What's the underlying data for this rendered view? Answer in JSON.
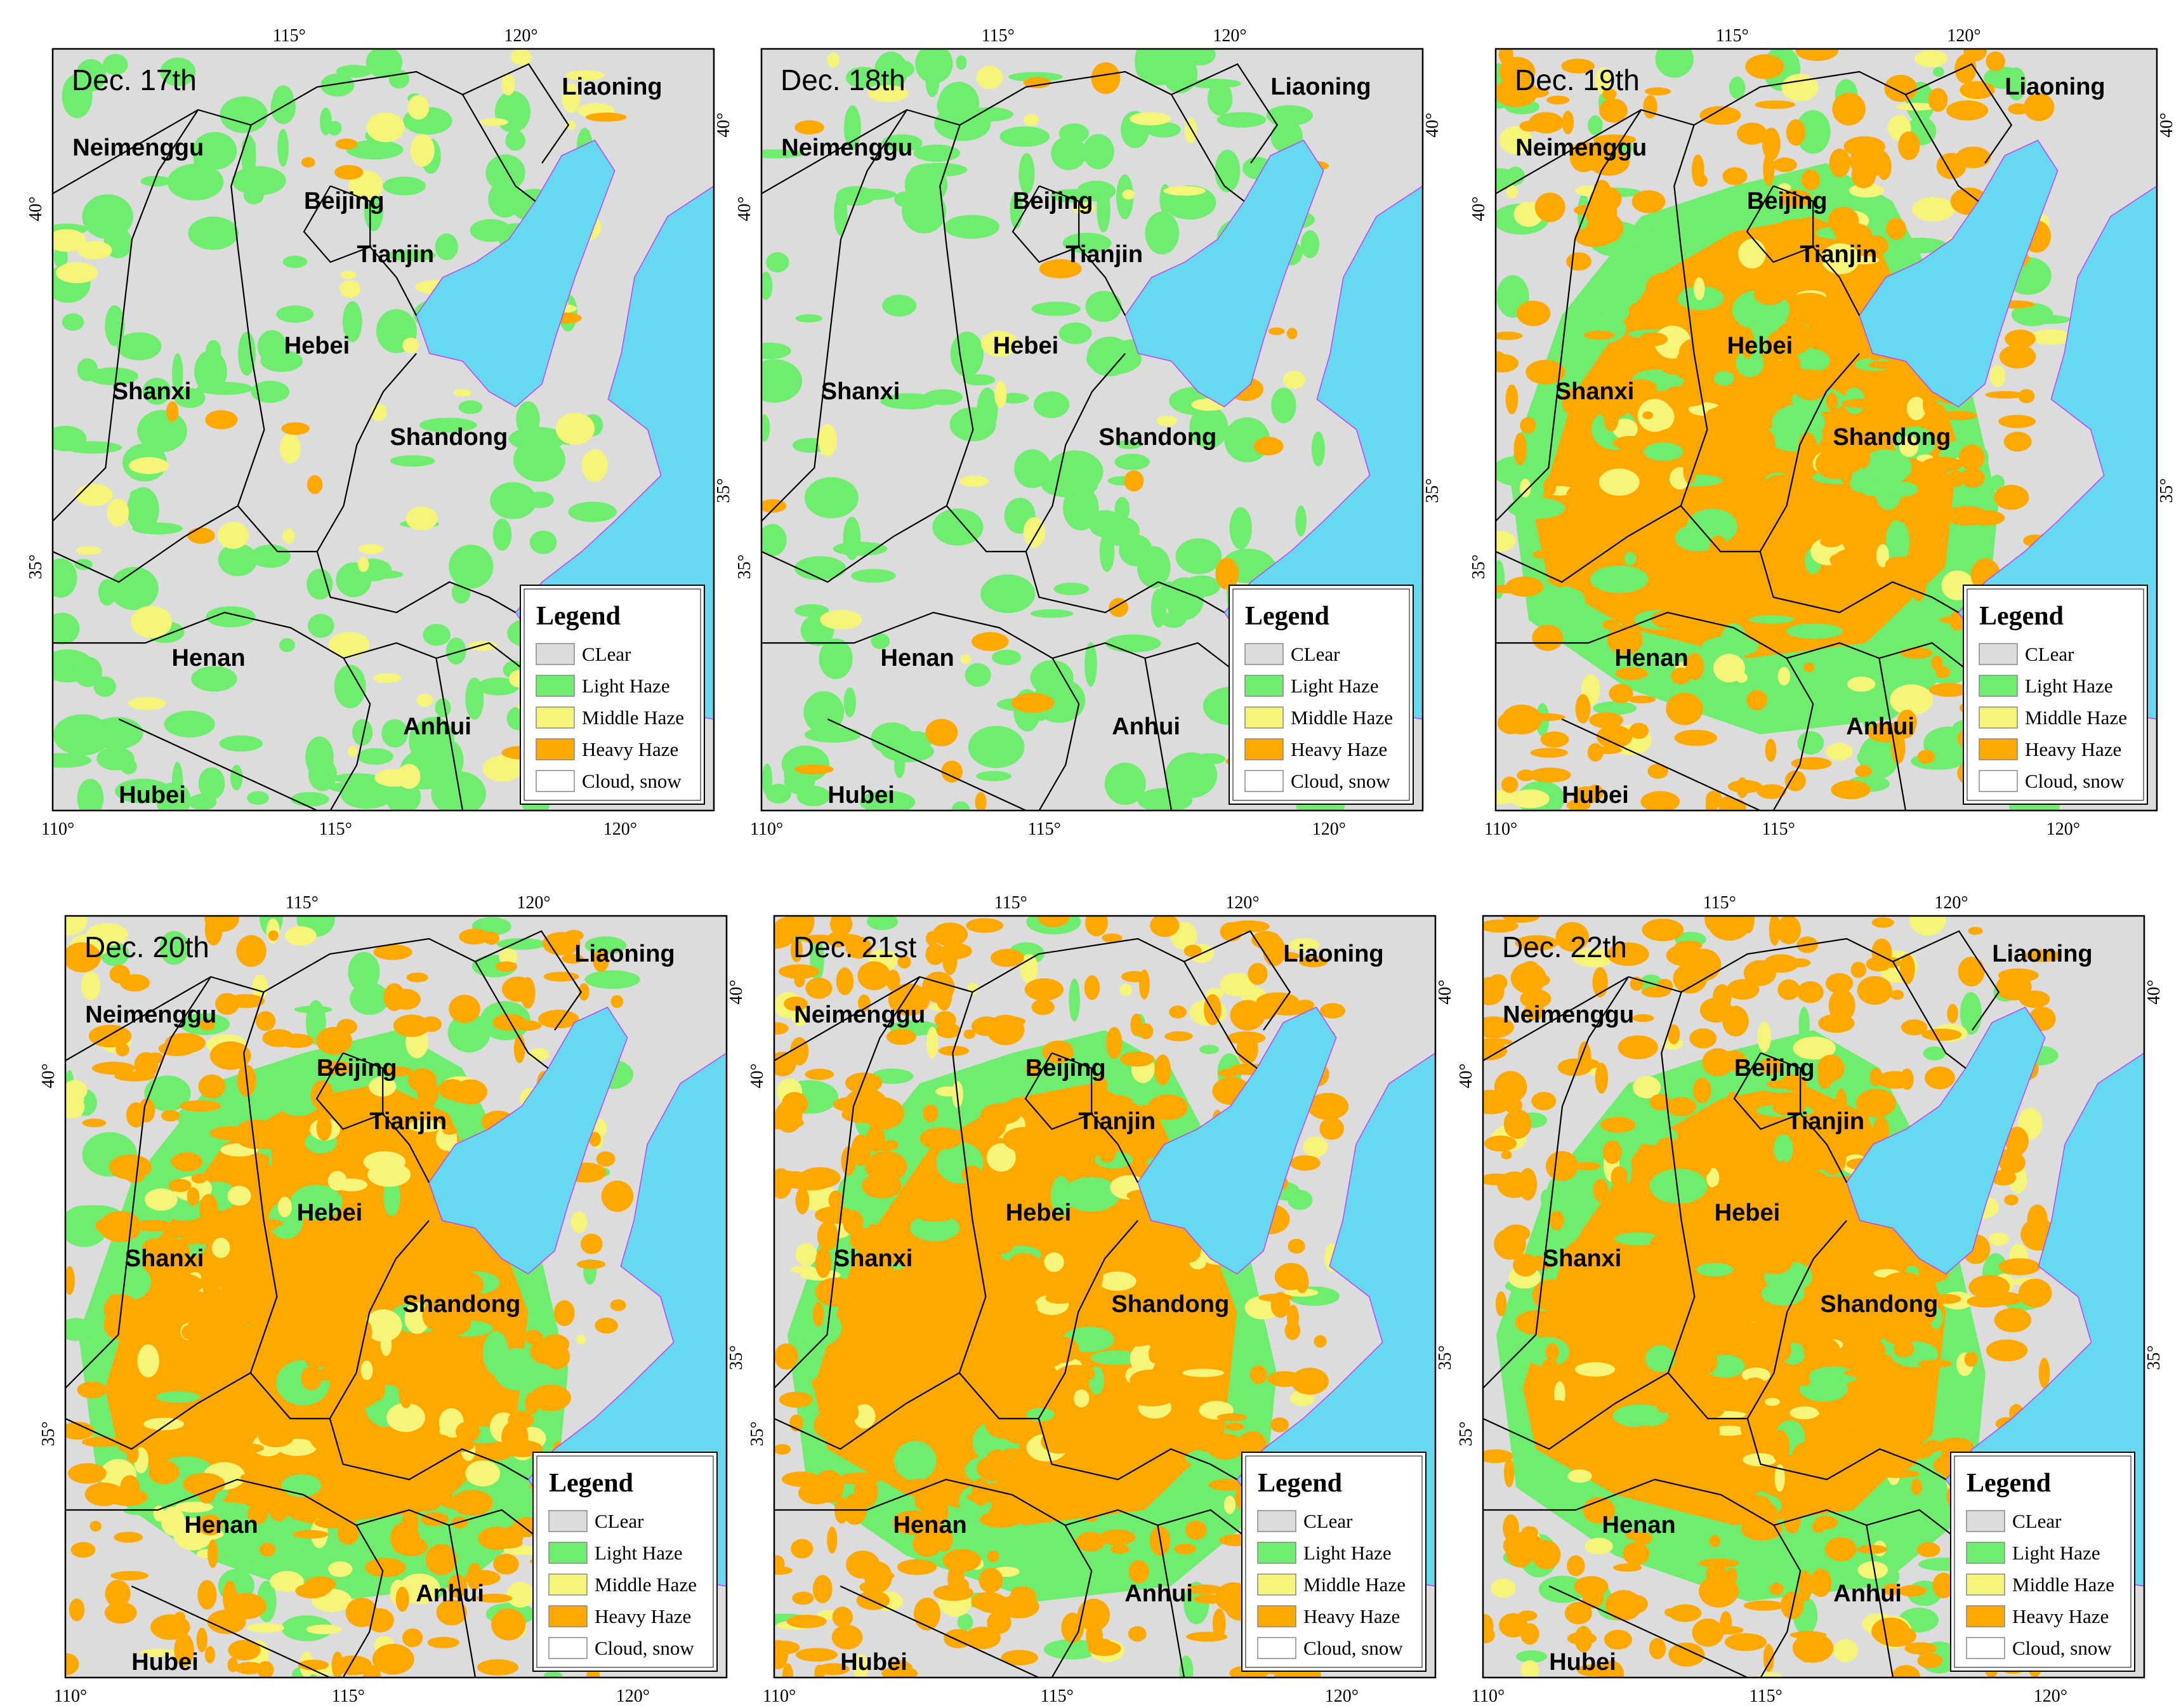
{
  "panels": [
    {
      "date": "Dec. 17th",
      "pattern": {
        "clear": 0.55,
        "light": 0.32,
        "middle": 0.1,
        "heavy": 0.03
      }
    },
    {
      "date": "Dec. 18th",
      "pattern": {
        "clear": 0.6,
        "light": 0.32,
        "middle": 0.04,
        "heavy": 0.04
      }
    },
    {
      "date": "Dec. 19th",
      "pattern": {
        "clear": 0.18,
        "light": 0.2,
        "middle": 0.12,
        "heavy": 0.5
      }
    },
    {
      "date": "Dec. 20th",
      "pattern": {
        "clear": 0.14,
        "light": 0.14,
        "middle": 0.17,
        "heavy": 0.55
      }
    },
    {
      "date": "Dec. 21st",
      "pattern": {
        "clear": 0.08,
        "light": 0.1,
        "middle": 0.12,
        "heavy": 0.7
      }
    },
    {
      "date": "Dec. 22th",
      "pattern": {
        "clear": 0.1,
        "light": 0.14,
        "middle": 0.1,
        "heavy": 0.66
      }
    }
  ],
  "provinces": [
    "Neimenggu",
    "Liaoning",
    "Beijing",
    "Tianjin",
    "Hebei",
    "Shanxi",
    "Shandong",
    "Henan",
    "Anhui",
    "Hubei"
  ],
  "axis_labels": {
    "bottom": [
      "110°",
      "115°",
      "120°"
    ],
    "top": [
      "115°",
      "120°"
    ],
    "left": [
      "40°",
      "35°"
    ],
    "right": [
      "40°",
      "35°"
    ]
  },
  "legend": {
    "title": "Legend",
    "items": [
      {
        "key": "clear",
        "label": "CLear",
        "color": "#dcdcdc"
      },
      {
        "key": "light",
        "label": "Light Haze",
        "color": "#6fed6f"
      },
      {
        "key": "middle",
        "label": "Middle Haze",
        "color": "#f5f57a"
      },
      {
        "key": "heavy",
        "label": "Heavy Haze",
        "color": "#ffa800"
      },
      {
        "key": "cloud",
        "label": "Cloud, snow",
        "color": "#ffffff"
      }
    ]
  },
  "sea_color": "#66d9f0"
}
